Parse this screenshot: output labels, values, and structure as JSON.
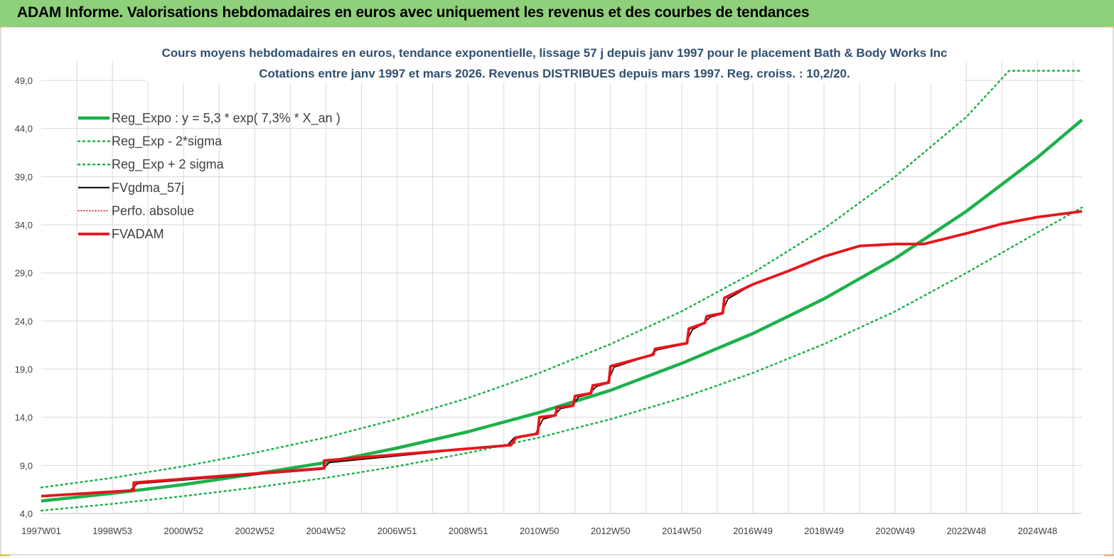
{
  "header": {
    "title": "ADAM Informe. Valorisations hebdomadaires en euros avec uniquement les revenus et des courbes de tendances"
  },
  "colors": {
    "header_bg": "#8fd07a",
    "reg_expo": "#1db14b",
    "sigma_bands": "#1db14b",
    "fvgdma": "#000000",
    "perfo_absolue": "#e00000",
    "fvadam": "#e8141b",
    "grid": "#d9d9d9"
  },
  "chart_data": {
    "type": "line",
    "title_line1": "Cours moyens hebdomadaires en euros, tendance exponentielle, lissage 57 j depuis janv 1997 pour le placement Bath & Body Works Inc",
    "title_line2": "Cotations entre janv 1997 et mars 2026. Revenus DISTRIBUES depuis mars 1997. Reg. croiss. : 10,2/20.",
    "xlabel": "",
    "ylabel": "",
    "ylim": [
      4.0,
      51.0
    ],
    "xlim": [
      1997.0,
      2026.25
    ],
    "y_ticks": [
      "4,0",
      "9,0",
      "14,0",
      "19,0",
      "24,0",
      "29,0",
      "34,0",
      "39,0",
      "44,0",
      "49,0"
    ],
    "x_ticks": [
      {
        "label": "1997W01",
        "x": 1997.0
      },
      {
        "label": "1998W53",
        "x": 1999.0
      },
      {
        "label": "2000W52",
        "x": 2001.0
      },
      {
        "label": "2002W52",
        "x": 2003.0
      },
      {
        "label": "2004W52",
        "x": 2005.0
      },
      {
        "label": "2006W51",
        "x": 2007.0
      },
      {
        "label": "2008W51",
        "x": 2009.0
      },
      {
        "label": "2010W50",
        "x": 2011.0
      },
      {
        "label": "2012W50",
        "x": 2013.0
      },
      {
        "label": "2014W50",
        "x": 2015.0
      },
      {
        "label": "2016W49",
        "x": 2017.0
      },
      {
        "label": "2018W49",
        "x": 2019.0
      },
      {
        "label": "2020W49",
        "x": 2021.0
      },
      {
        "label": "2022W48",
        "x": 2023.0
      },
      {
        "label": "2024W48",
        "x": 2025.0
      }
    ],
    "grid": true,
    "legend_position": "top-left",
    "legend": [
      {
        "name": "Reg_Expo : y = 5,3 * exp( 7,3% *  X_an )",
        "key": "reg_expo"
      },
      {
        "name": "Reg_Exp - 2*sigma",
        "key": "reg_minus"
      },
      {
        "name": "Reg_Exp + 2 sigma",
        "key": "reg_plus"
      },
      {
        "name": "FVgdma_57j",
        "key": "fvgdma"
      },
      {
        "name": "Perfo. absolue",
        "key": "perfo"
      },
      {
        "name": "FVADAM",
        "key": "fvadam"
      }
    ],
    "series": [
      {
        "name": "Reg_Expo : y = 5,3 * exp( 7,3% *  X_an )",
        "style": "solid-thick",
        "x": [
          1997.0,
          1999.0,
          2001.0,
          2003.0,
          2005.0,
          2007.0,
          2009.0,
          2011.0,
          2013.0,
          2015.0,
          2017.0,
          2019.0,
          2021.0,
          2023.0,
          2025.0,
          2026.25
        ],
        "y": [
          5.3,
          6.1,
          7.0,
          8.1,
          9.3,
          10.8,
          12.5,
          14.5,
          16.8,
          19.6,
          22.7,
          26.3,
          30.5,
          35.4,
          41.0,
          44.9
        ]
      },
      {
        "name": "Reg_Exp - 2*sigma",
        "style": "dotted",
        "x": [
          1997.0,
          1999.0,
          2001.0,
          2003.0,
          2005.0,
          2007.0,
          2009.0,
          2011.0,
          2013.0,
          2015.0,
          2017.0,
          2019.0,
          2021.0,
          2023.0,
          2025.0,
          2026.25
        ],
        "y": [
          4.3,
          5.0,
          5.8,
          6.7,
          7.7,
          8.9,
          10.3,
          11.9,
          13.8,
          16.0,
          18.6,
          21.6,
          25.0,
          29.0,
          33.2,
          35.8
        ]
      },
      {
        "name": "Reg_Exp + 2 sigma",
        "style": "dotted",
        "x": [
          1997.0,
          1999.0,
          2001.0,
          2003.0,
          2005.0,
          2007.0,
          2009.0,
          2011.0,
          2013.0,
          2015.0,
          2017.0,
          2019.0,
          2021.0,
          2023.0,
          2024.2,
          2025.0,
          2026.25
        ],
        "y": [
          6.7,
          7.7,
          8.9,
          10.3,
          11.9,
          13.8,
          16.0,
          18.6,
          21.6,
          25.0,
          29.0,
          33.6,
          39.0,
          45.2,
          50.0,
          50.0,
          50.0
        ]
      },
      {
        "name": "FVgdma_57j",
        "style": "solid-thin",
        "x": [
          1997.0,
          1999.5,
          1999.7,
          2004.9,
          2005.1,
          2010.1,
          2010.3,
          2010.9,
          2011.1,
          2011.4,
          2011.6,
          2011.9,
          2012.1,
          2012.4,
          2012.6,
          2012.9,
          2013.1,
          2014.1,
          2014.3,
          2015.1,
          2015.3,
          2015.6,
          2015.8,
          2016.1,
          2016.3,
          2017.0,
          2018.0,
          2019.0,
          2020.0,
          2021.0,
          2021.8,
          2023.0,
          2024.0,
          2025.0,
          2026.25
        ],
        "y": [
          5.8,
          6.4,
          7.1,
          8.6,
          9.3,
          11.1,
          11.9,
          12.3,
          13.8,
          14.1,
          14.9,
          15.1,
          16.1,
          16.4,
          17.2,
          17.5,
          19.2,
          20.4,
          21.0,
          21.6,
          23.1,
          23.7,
          24.4,
          24.7,
          26.3,
          27.8,
          29.2,
          30.7,
          31.8,
          32.0,
          32.0,
          33.1,
          34.1,
          34.8,
          35.4
        ]
      },
      {
        "name": "Perfo. absolue",
        "style": "dotted-thin",
        "x": [
          1997.0,
          1999.5,
          1999.7,
          2004.9,
          2005.1,
          2010.1,
          2010.3,
          2010.9,
          2011.1,
          2011.4,
          2011.6,
          2011.9,
          2012.1,
          2012.4,
          2012.6,
          2012.9,
          2013.1,
          2014.1,
          2014.3,
          2015.1,
          2015.3,
          2015.6,
          2015.8,
          2016.1,
          2016.3,
          2017.0,
          2018.0,
          2019.0,
          2020.0,
          2021.0,
          2021.8,
          2023.0,
          2024.0,
          2025.0,
          2026.25
        ],
        "y": [
          5.8,
          6.4,
          7.1,
          8.6,
          9.3,
          11.1,
          11.9,
          12.3,
          13.8,
          14.1,
          14.9,
          15.1,
          16.1,
          16.4,
          17.2,
          17.5,
          19.2,
          20.4,
          21.0,
          21.6,
          23.1,
          23.7,
          24.4,
          24.7,
          26.3,
          27.8,
          29.2,
          30.7,
          31.8,
          32.0,
          32.0,
          33.1,
          34.1,
          34.8,
          35.4
        ]
      },
      {
        "name": "FVADAM",
        "style": "solid-thick",
        "x": [
          1997.0,
          1999.6,
          1999.6,
          2004.95,
          2004.95,
          2010.2,
          2010.35,
          2010.95,
          2011.0,
          2011.45,
          2011.5,
          2011.95,
          2012.0,
          2012.45,
          2012.5,
          2012.95,
          2013.0,
          2014.2,
          2014.25,
          2015.15,
          2015.2,
          2015.65,
          2015.7,
          2016.15,
          2016.2,
          2017.0,
          2018.0,
          2019.0,
          2020.0,
          2021.0,
          2021.8,
          2023.0,
          2024.0,
          2025.0,
          2026.25
        ],
        "y": [
          5.8,
          6.4,
          7.2,
          8.7,
          9.5,
          11.1,
          11.9,
          12.3,
          14.0,
          14.2,
          15.0,
          15.2,
          16.2,
          16.5,
          17.3,
          17.6,
          19.3,
          20.5,
          21.1,
          21.7,
          23.2,
          23.8,
          24.5,
          24.8,
          26.4,
          27.8,
          29.2,
          30.7,
          31.8,
          32.0,
          32.0,
          33.1,
          34.1,
          34.8,
          35.4
        ]
      }
    ]
  }
}
